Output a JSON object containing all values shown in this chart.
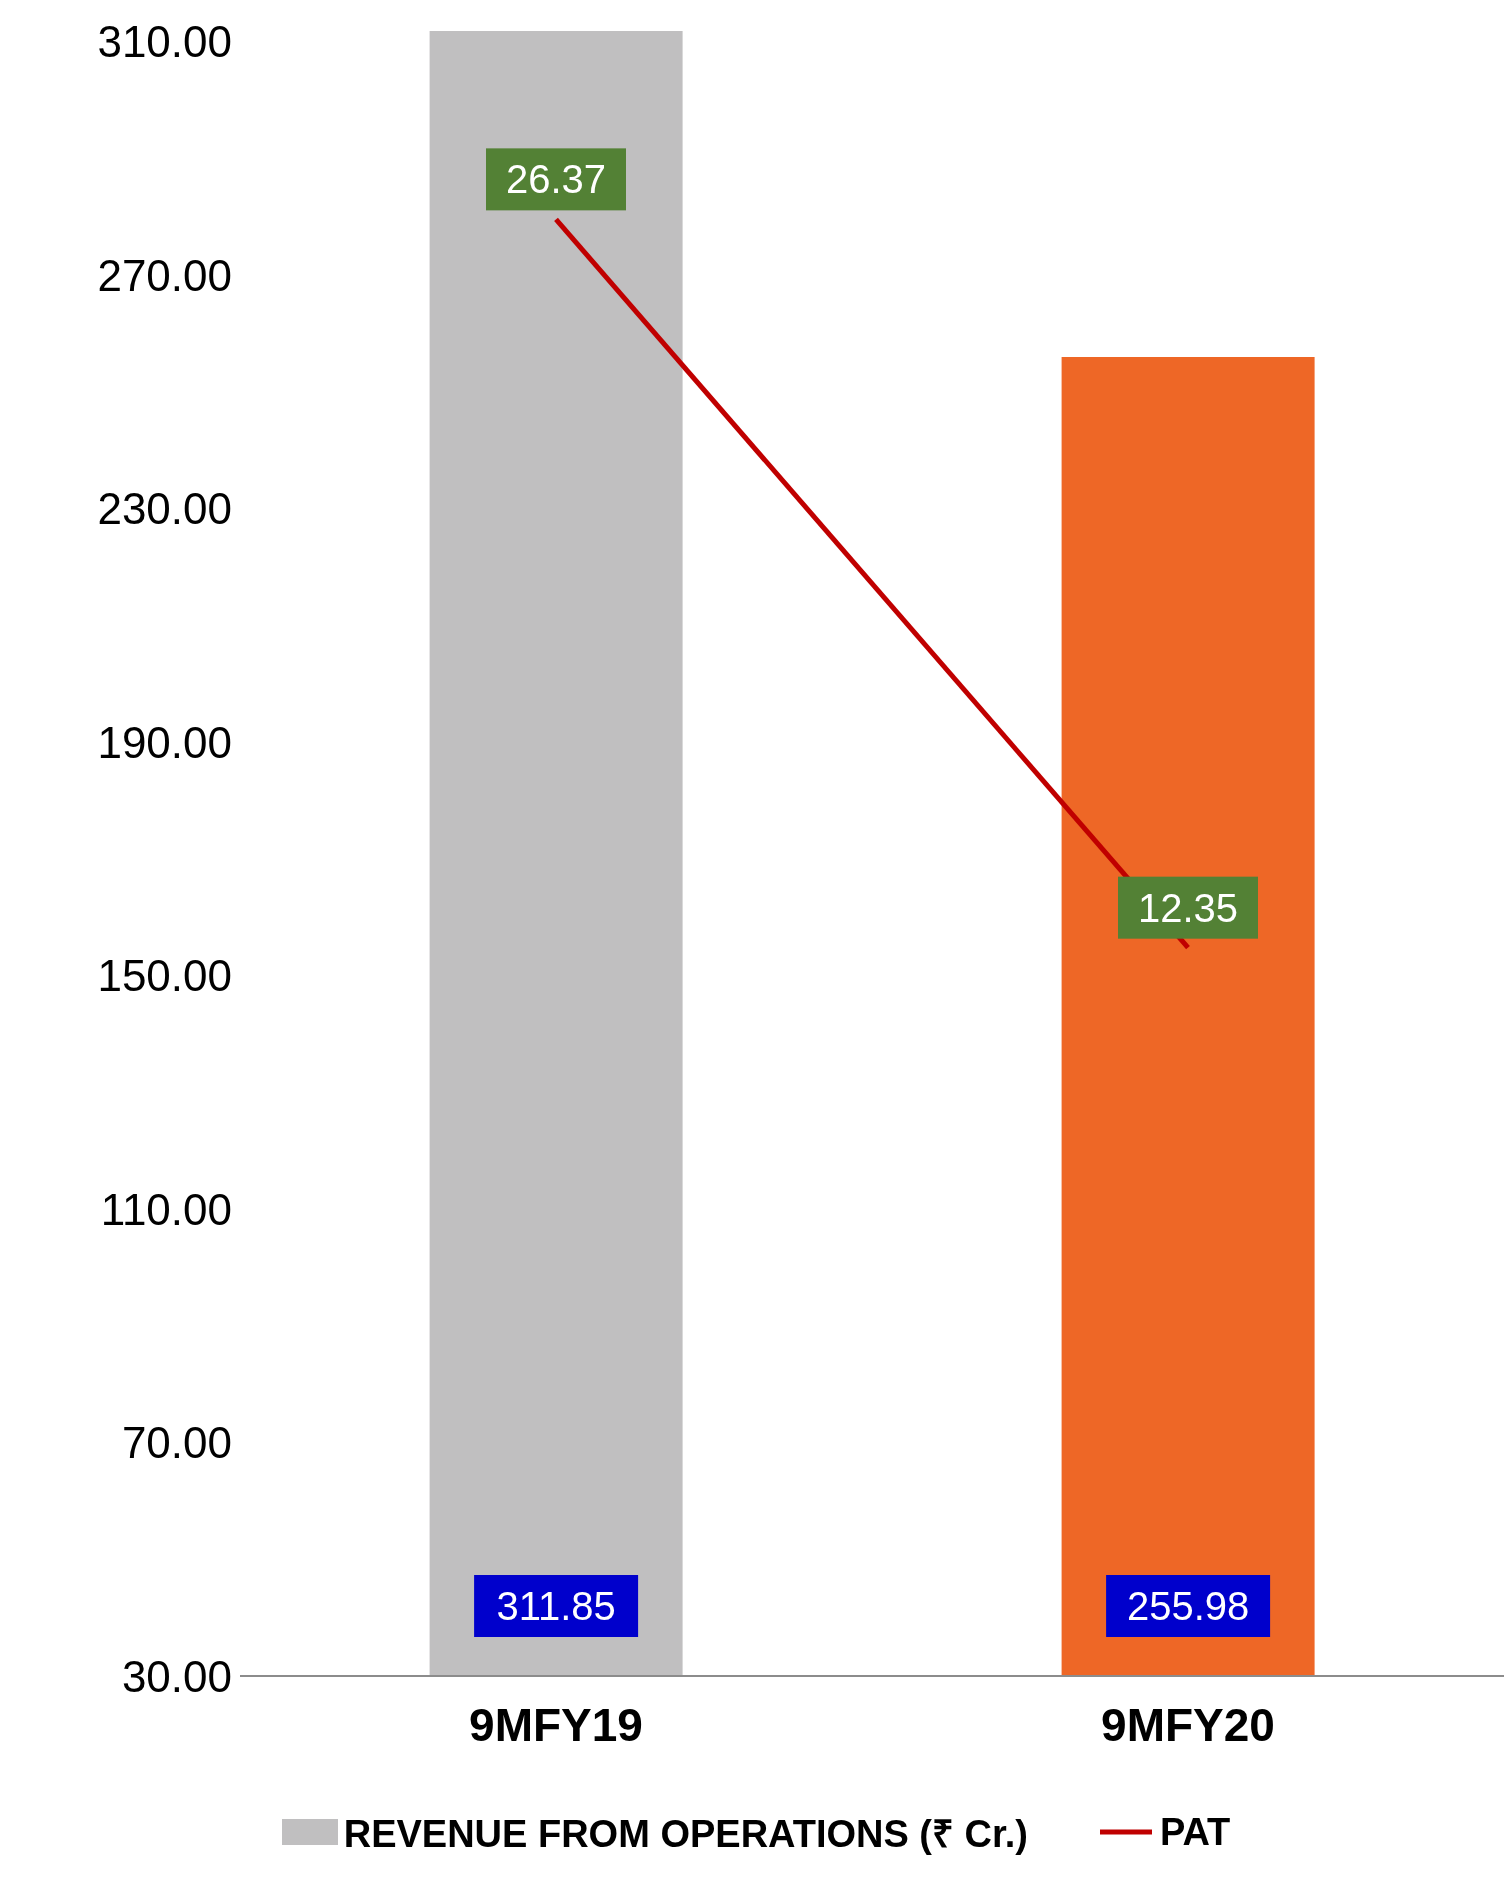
{
  "chart_data": {
    "type": "bar",
    "categories": [
      "9MFY19",
      "9MFY20"
    ],
    "series": [
      {
        "name": "REVENUE FROM OPERATIONS (₹ Cr.)",
        "color": "#c0bfc0",
        "colors": [
          "#c0bfc0",
          "#ee6726"
        ],
        "values": [
          311.85,
          255.98
        ]
      },
      {
        "name": "PAT",
        "type": "line",
        "color": "#c00000",
        "axis": "y2",
        "values": [
          26.37,
          12.35
        ]
      }
    ],
    "ylim": [
      30,
      312
    ],
    "yticks": [
      {
        "value": 30,
        "label": "30.00"
      },
      {
        "value": 70,
        "label": "70.00"
      },
      {
        "value": 110,
        "label": "110.00"
      },
      {
        "value": 150,
        "label": "150.00"
      },
      {
        "value": 190,
        "label": "190.00"
      },
      {
        "value": 230,
        "label": "230.00"
      },
      {
        "value": 270,
        "label": "270.00"
      },
      {
        "value": 310,
        "label": "310.00"
      }
    ],
    "data_labels": true,
    "grid": false,
    "legend": "bottom",
    "marker": "none"
  }
}
